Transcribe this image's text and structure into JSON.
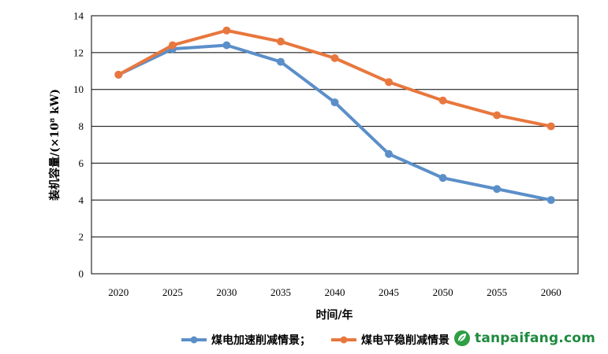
{
  "chart_data": {
    "type": "line",
    "title": "",
    "xlabel": "时间/年",
    "ylabel": "装机容量/(×10⁸ kW)",
    "ylim": [
      0,
      14
    ],
    "yticks": [
      0,
      2,
      4,
      6,
      8,
      10,
      12,
      14
    ],
    "grid": true,
    "categories": [
      "2020",
      "2025",
      "2030",
      "2035",
      "2040",
      "2045",
      "2050",
      "2055",
      "2060"
    ],
    "series": [
      {
        "name": "煤电加速削减情景；",
        "color": "#5b8fc9",
        "values": [
          10.8,
          12.2,
          12.4,
          11.5,
          9.3,
          6.5,
          5.2,
          4.6,
          4.0
        ]
      },
      {
        "name": "煤电平稳削减情景",
        "color": "#e8773e",
        "values": [
          10.8,
          12.4,
          13.2,
          12.6,
          11.7,
          10.4,
          9.4,
          8.6,
          8.0
        ]
      }
    ],
    "legend_position": "bottom"
  },
  "watermark": {
    "text": "tanpaifang.com",
    "icon": "leaf-logo-icon"
  }
}
